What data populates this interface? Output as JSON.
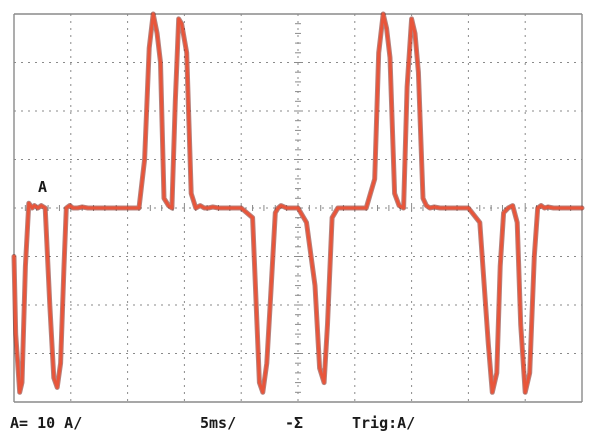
{
  "screen": {
    "channel_marker": "A",
    "readouts": {
      "scale": "A= 10 A/",
      "timebase": "5ms/",
      "coupling": "-Σ",
      "trigger": "Trig:A/"
    }
  },
  "colors": {
    "background": "#ffffff",
    "grid": "#8a8a8a",
    "trace": "#e8553a",
    "trace_edge": "#7a1a10",
    "text": "#1a1a1a"
  },
  "chart_data": {
    "type": "line",
    "x_unit": "div",
    "y_unit": "div",
    "xlim": [
      0,
      10
    ],
    "ylim": [
      -4,
      4
    ],
    "grid": true,
    "divisions": {
      "x": 10,
      "y": 8
    },
    "series": [
      {
        "x": [
          0.0,
          0.03,
          0.1,
          0.14,
          0.2,
          0.26,
          0.32,
          0.36,
          0.42,
          0.48,
          0.55,
          0.63,
          0.7,
          0.76,
          0.82,
          0.88,
          0.92,
          0.98,
          1.04,
          1.12,
          1.2,
          1.3,
          1.45,
          1.6,
          1.8,
          2.0,
          2.2,
          2.3,
          2.38,
          2.45,
          2.52,
          2.58,
          2.64,
          2.72,
          2.78,
          2.84,
          2.9,
          2.95,
          3.04,
          3.12,
          3.2,
          3.28,
          3.35,
          3.42,
          3.5,
          3.6,
          3.8,
          4.0,
          4.2,
          4.25,
          4.32,
          4.38,
          4.45,
          4.52,
          4.6,
          4.65,
          4.7,
          4.8,
          5.0,
          5.15,
          5.3,
          5.38,
          5.46,
          5.52,
          5.6,
          5.7,
          5.85,
          6.0,
          6.2,
          6.35,
          6.42,
          6.5,
          6.56,
          6.62,
          6.7,
          6.78,
          6.86,
          6.92,
          7.0,
          7.06,
          7.12,
          7.2,
          7.26,
          7.32,
          7.4,
          7.5,
          7.6,
          7.8,
          8.0,
          8.2,
          8.35,
          8.42,
          8.5,
          8.56,
          8.62,
          8.7,
          8.78,
          8.86,
          8.92,
          9.0,
          9.08,
          9.16,
          9.22,
          9.28,
          9.34,
          9.4,
          9.5,
          9.7,
          9.9,
          10.0
        ],
        "y": [
          -1.0,
          -2.6,
          -3.8,
          -3.6,
          -1.2,
          0.1,
          0.0,
          0.05,
          0.0,
          0.05,
          0.0,
          -2.0,
          -3.5,
          -3.7,
          -3.2,
          -1.2,
          0.0,
          0.05,
          0.0,
          0.0,
          0.02,
          0.0,
          0.0,
          0.0,
          0.0,
          0.0,
          0.0,
          1.0,
          3.3,
          4.0,
          3.6,
          3.0,
          0.2,
          0.05,
          0.0,
          2.2,
          3.9,
          3.8,
          3.2,
          0.3,
          0.0,
          0.05,
          0.0,
          0.0,
          0.02,
          0.0,
          0.0,
          0.0,
          -0.2,
          -1.6,
          -3.6,
          -3.8,
          -3.2,
          -1.8,
          -0.1,
          0.0,
          0.05,
          0.0,
          0.0,
          -0.3,
          -1.6,
          -3.3,
          -3.6,
          -2.4,
          -0.2,
          0.0,
          0.0,
          0.0,
          0.0,
          0.6,
          3.2,
          4.0,
          3.7,
          3.1,
          0.3,
          0.05,
          0.0,
          2.5,
          3.9,
          3.6,
          2.8,
          0.2,
          0.05,
          0.0,
          0.02,
          0.0,
          0.0,
          0.0,
          0.0,
          -0.3,
          -2.8,
          -3.8,
          -3.4,
          -1.2,
          -0.1,
          0.0,
          0.05,
          -0.3,
          -2.4,
          -3.8,
          -3.4,
          -1.0,
          0.0,
          0.05,
          0.0,
          0.02,
          0.0,
          0.0,
          0.0,
          0.0
        ]
      }
    ]
  }
}
